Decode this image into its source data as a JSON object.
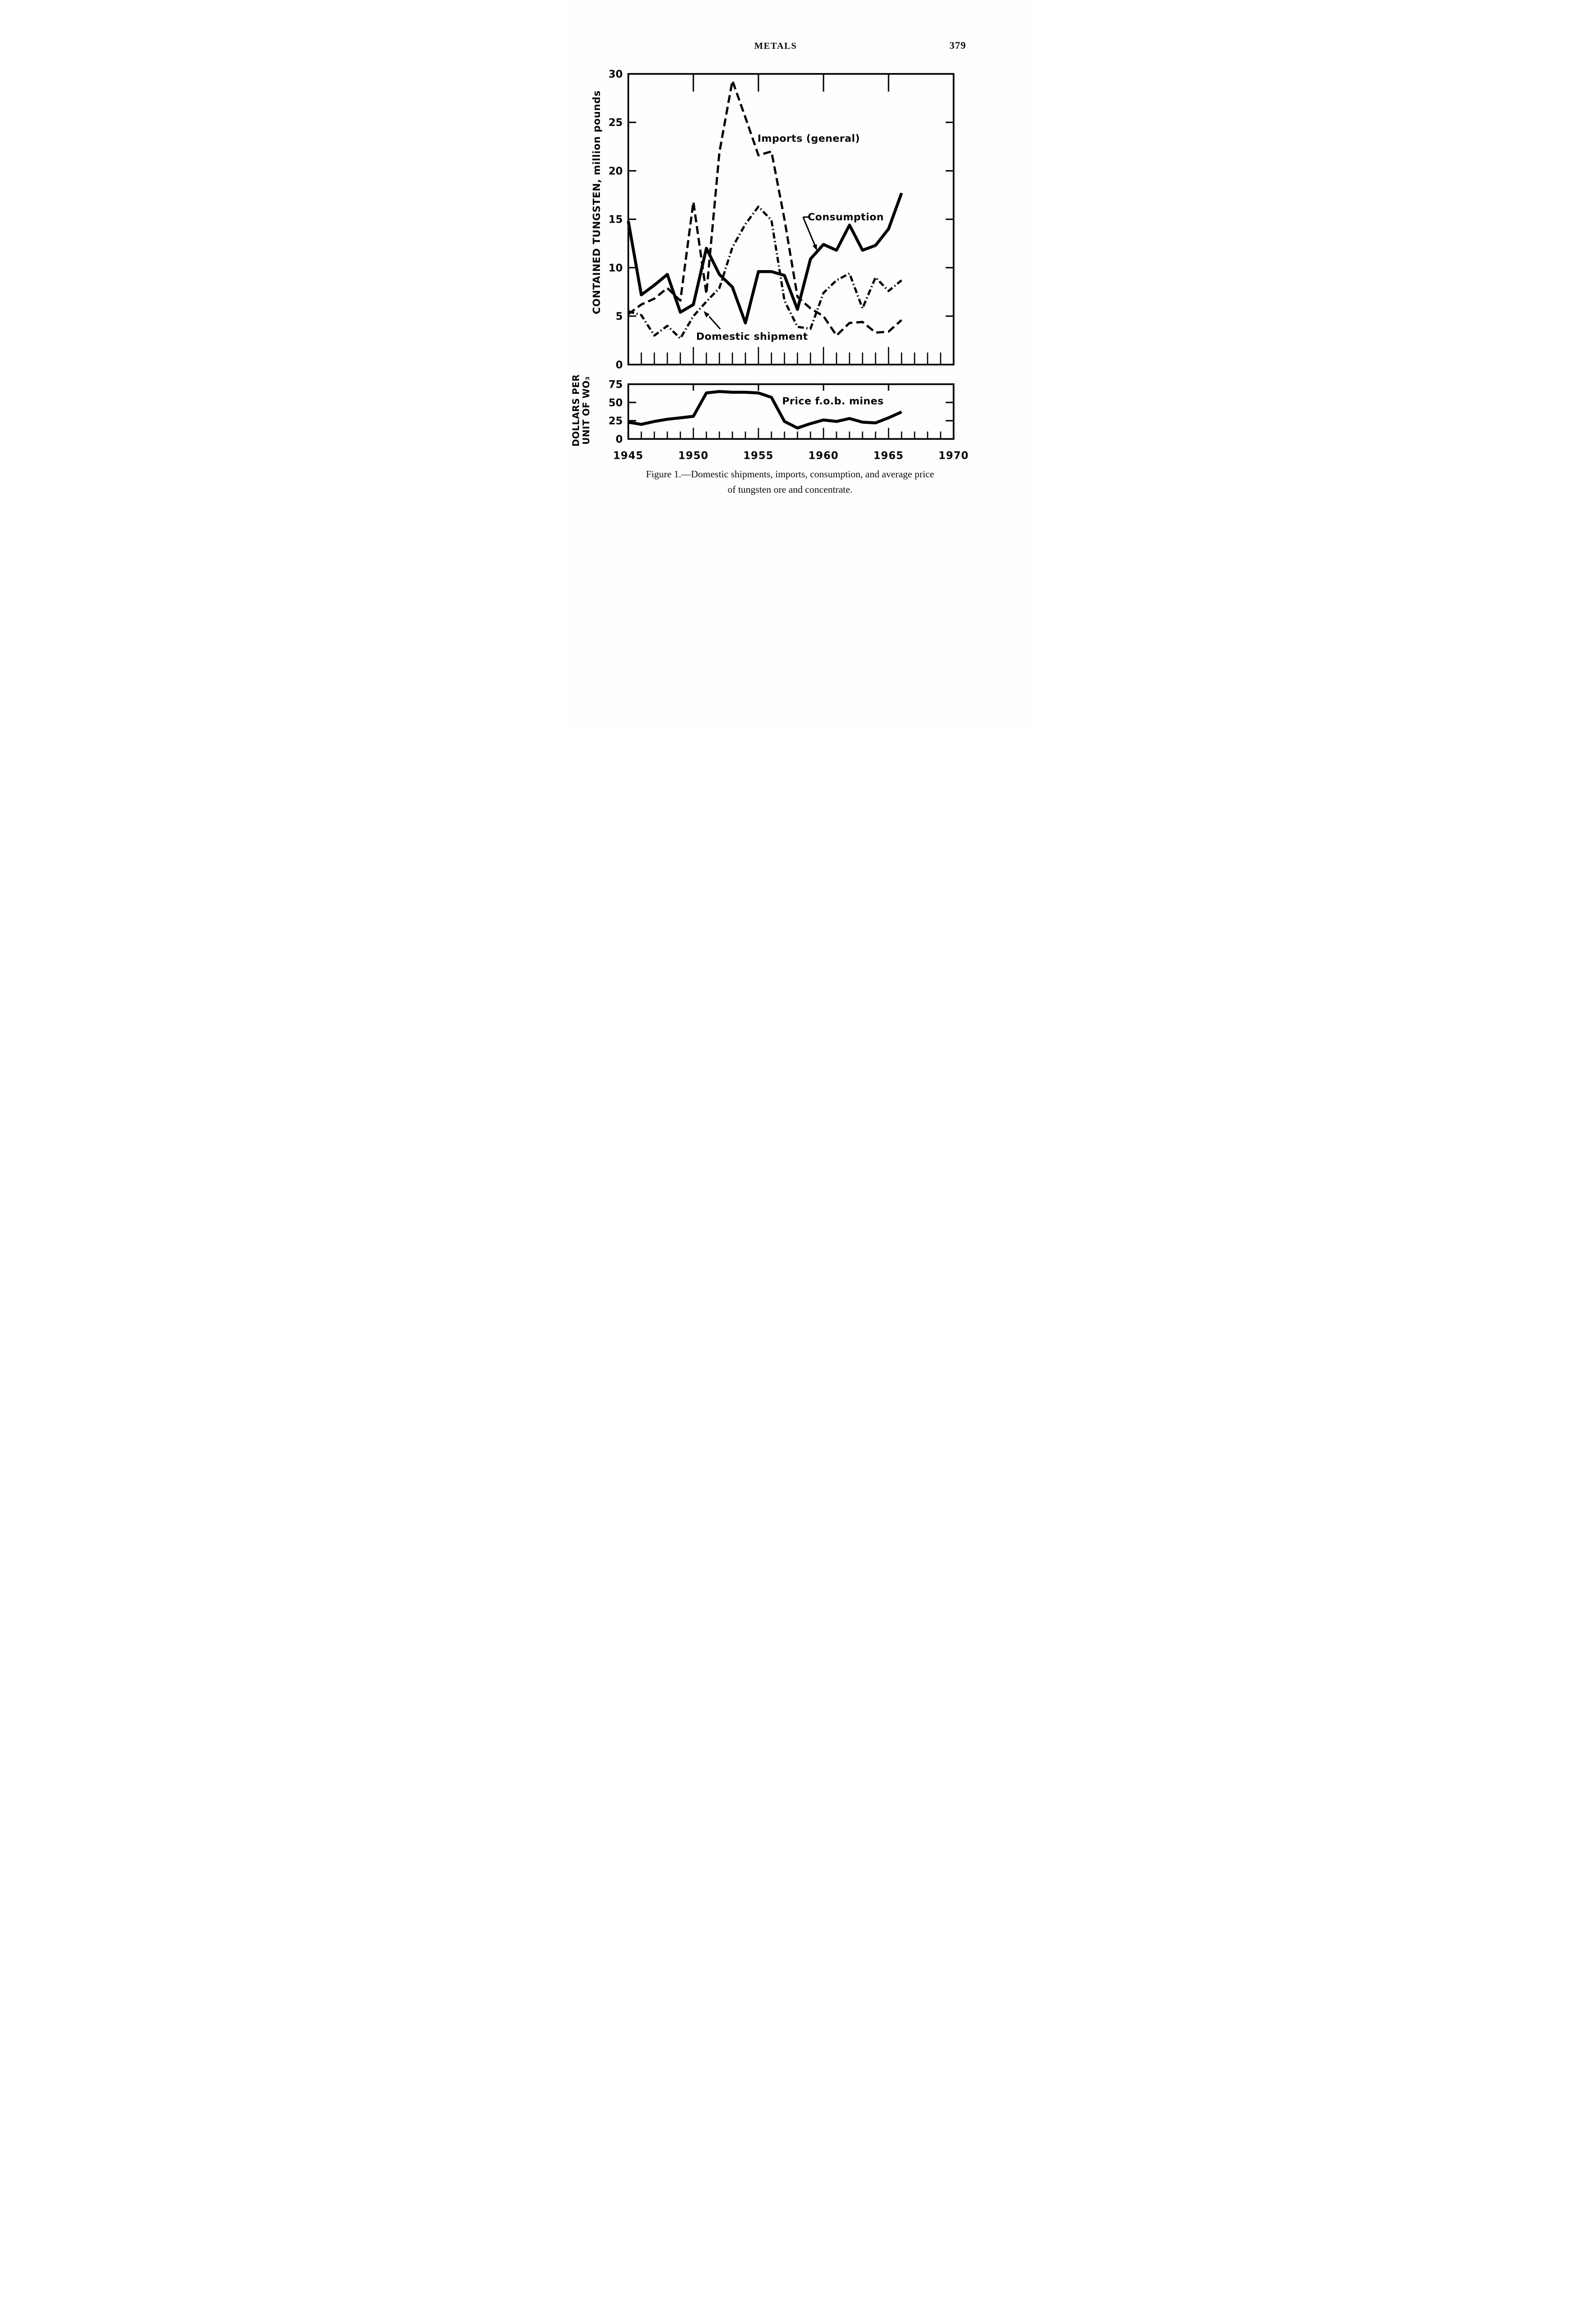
{
  "page": {
    "header": "METALS",
    "page_number": "379"
  },
  "caption": {
    "line1": "Figure 1.—Domestic shipments, imports, consumption, and average price",
    "line2": "of tungsten ore and concentrate."
  },
  "chart_data": [
    {
      "type": "line",
      "ylabel": "CONTAINED TUNGSTEN, million pounds",
      "xlim": [
        1945,
        1970
      ],
      "ylim": [
        0,
        30
      ],
      "yticks": [
        30,
        25,
        20,
        15,
        10,
        5,
        0
      ],
      "top_axis_ticks": [
        1950,
        1955,
        1960,
        1965
      ],
      "grid": false,
      "legend_position": "inline-annotations",
      "x": [
        1945,
        1946,
        1947,
        1948,
        1949,
        1950,
        1951,
        1952,
        1953,
        1954,
        1955,
        1956,
        1957,
        1958,
        1959,
        1960,
        1961,
        1962,
        1963,
        1964,
        1965,
        1966
      ],
      "series": [
        {
          "name": "Imports (general)",
          "style": "dashed",
          "values": [
            5.2,
            6.2,
            6.8,
            7.9,
            6.6,
            16.8,
            7.3,
            21.9,
            29.3,
            25.5,
            21.6,
            22.0,
            15.0,
            7.0,
            5.8,
            5.0,
            3.0,
            4.3,
            4.4,
            3.3,
            3.4,
            4.6
          ]
        },
        {
          "name": "Consumption",
          "style": "solid",
          "values": [
            14.8,
            7.2,
            8.2,
            9.3,
            5.4,
            6.2,
            12.0,
            9.3,
            8.0,
            4.3,
            9.6,
            9.6,
            9.2,
            5.7,
            10.9,
            12.4,
            11.8,
            14.4,
            11.8,
            12.3,
            14.0,
            17.7
          ]
        },
        {
          "name": "Domestic shipment",
          "style": "dashdot",
          "values": [
            5.5,
            5.1,
            3.0,
            4.0,
            2.7,
            5.0,
            6.5,
            7.9,
            12.1,
            14.5,
            16.3,
            14.9,
            6.6,
            3.9,
            3.7,
            7.4,
            8.7,
            9.4,
            5.8,
            9.0,
            7.6,
            8.7
          ]
        }
      ]
    },
    {
      "type": "line",
      "ylabel_lines": [
        "DOLLARS PER",
        "UNIT OF WO₃"
      ],
      "xlim": [
        1945,
        1970
      ],
      "ylim": [
        0,
        75
      ],
      "yticks": [
        75,
        50,
        25,
        0
      ],
      "top_axis_ticks": [
        1950,
        1955,
        1960,
        1965
      ],
      "xtick_labels": [
        "1945",
        "1950",
        "1955",
        "1960",
        "1965",
        "1970"
      ],
      "grid": false,
      "x": [
        1945,
        1946,
        1947,
        1948,
        1949,
        1950,
        1951,
        1952,
        1953,
        1954,
        1955,
        1956,
        1957,
        1958,
        1959,
        1960,
        1961,
        1962,
        1963,
        1964,
        1965,
        1966
      ],
      "series": [
        {
          "name": "Price f.o.b. mines",
          "style": "solid",
          "values": [
            23,
            20,
            24,
            27,
            29,
            31,
            63,
            65,
            64,
            64,
            63,
            57,
            24,
            15,
            21,
            26,
            24,
            28,
            23,
            22,
            29,
            37
          ]
        }
      ]
    }
  ]
}
